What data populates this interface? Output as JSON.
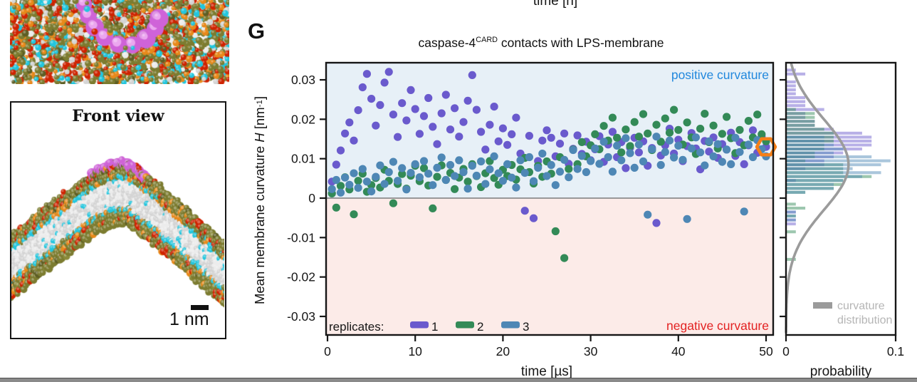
{
  "figure": {
    "panel_label": "G",
    "cropped_top_axis_label": "time [h]",
    "images": {
      "top_view": {
        "palette": {
          "olive": "#7c7c30",
          "olive_dark": "#5e5e24",
          "red": "#cf2300",
          "orange": "#e8891a",
          "cyan": "#22c6de",
          "core_light": "#ececec",
          "core_dark": "#d4d4d4",
          "protein_magenta": "#cf63d8",
          "protein_light": "#eba6ef"
        }
      },
      "front_view": {
        "label": "Front view",
        "scale_bar_text": "1 nm"
      }
    }
  },
  "chart_data": {
    "type": "scatter",
    "title_parts": {
      "main": "caspase-4",
      "sup": "CARD",
      "rest": " contacts with LPS-membrane"
    },
    "xlabel": "time [µs]",
    "ylabel_parts": {
      "prefix": "Mean membrane curvature ",
      "variable": "H",
      "unit_open": " [nm",
      "unit_sup": "-1",
      "unit_close": "]"
    },
    "xlim": [
      0,
      50
    ],
    "ylim": [
      -0.0345,
      0.0345
    ],
    "xticks": [
      {
        "v": 0,
        "label": "0"
      },
      {
        "v": 10,
        "label": "10"
      },
      {
        "v": 20,
        "label": "20"
      },
      {
        "v": 30,
        "label": "30"
      },
      {
        "v": 40,
        "label": "40"
      },
      {
        "v": 50,
        "label": "50"
      }
    ],
    "yticks": [
      {
        "v": 30,
        "label": "0.03"
      },
      {
        "v": 20,
        "label": "0.02"
      },
      {
        "v": 10,
        "label": "0.01"
      },
      {
        "v": 0,
        "label": "0"
      },
      {
        "v": -10,
        "label": "-0.01"
      },
      {
        "v": -20,
        "label": "-0.02"
      },
      {
        "v": -30,
        "label": "-0.03"
      }
    ],
    "background": {
      "positive_region": "#e7f0f7",
      "negative_region": "#fcebe8",
      "zero_line": "#8c8c8c"
    },
    "annotations": {
      "positive": {
        "text": "positive curvature",
        "color": "#2288dd"
      },
      "negative": {
        "text": "negative curvature",
        "color": "#e32222"
      }
    },
    "legend": {
      "label": "replicates:",
      "entries": [
        {
          "name": "1",
          "color": "#6a5acd"
        },
        {
          "name": "2",
          "color": "#338a57"
        },
        {
          "name": "3",
          "color": "#4e87b5"
        }
      ]
    },
    "series_H_units": "1e-3 nm^-1",
    "series": [
      {
        "name": "1",
        "color": "#6a5acd",
        "t0": 0.5,
        "dt": 0.5,
        "H_milli": [
          4.2,
          8.5,
          12.1,
          16.4,
          19.2,
          14.6,
          22.3,
          28.1,
          31.5,
          25.2,
          18.4,
          23.6,
          29.3,
          32.0,
          21.2,
          15.5,
          24.1,
          19.7,
          27.4,
          22.6,
          16.3,
          20.8,
          25.4,
          18.1,
          13.7,
          21.5,
          26.2,
          17.4,
          22.8,
          15.6,
          19.3,
          24.7,
          31.2,
          22.4,
          16.8,
          12.3,
          18.6,
          23.2,
          14.4,
          17.7,
          13.5,
          16.2,
          20.4,
          11.3,
          -3.2,
          15.8,
          -5.1,
          9.4,
          14.6,
          17.2,
          15.3,
          10.6,
          13.8,
          16.4,
          8.7,
          12.5,
          15.9,
          11.2,
          14.3,
          9.6,
          12.4,
          15.7,
          9.2,
          13.6,
          16.8,
          10.4,
          14.2,
          7.6,
          12.8,
          15.3,
          11.6,
          14.4,
          8.2,
          12.7,
          -6.3,
          10.8,
          13.4,
          17.6,
          11.3,
          14.8,
          9.4,
          13.2,
          16.5,
          12.6,
          7.3,
          14.5,
          11.8,
          15.4,
          10.2,
          13.7,
          12.3,
          16.6,
          10.7,
          14.2,
          8.6,
          13.4,
          17.2,
          11.5,
          15.6,
          13.0
        ]
      },
      {
        "name": "2",
        "color": "#338a57",
        "t0": 0.5,
        "dt": 0.5,
        "H_milli": [
          1.2,
          -2.4,
          3.1,
          5.3,
          2.2,
          -4.1,
          4.4,
          6.2,
          1.6,
          3.3,
          5.1,
          2.7,
          7.2,
          4.4,
          -1.3,
          3.6,
          6.1,
          2.4,
          5.7,
          8.2,
          4.3,
          7.6,
          3.2,
          -2.6,
          5.4,
          8.3,
          4.6,
          6.4,
          2.3,
          5.2,
          7.4,
          4.2,
          8.6,
          5.6,
          2.8,
          6.3,
          9.4,
          5.1,
          3.4,
          7.2,
          5.6,
          8.4,
          4.7,
          7.3,
          10.2,
          6.6,
          3.7,
          8.2,
          5.4,
          9.3,
          6.2,
          -8.4,
          10.4,
          -15.2,
          7.4,
          12.3,
          8.6,
          14.2,
          10.6,
          13.4,
          16.2,
          12.4,
          18.3,
          14.6,
          20.4,
          15.3,
          11.6,
          17.4,
          13.2,
          19.3,
          15.6,
          21.3,
          16.4,
          12.2,
          18.6,
          14.3,
          20.2,
          16.6,
          22.4,
          17.3,
          13.6,
          19.2,
          15.4,
          11.2,
          17.6,
          21.4,
          14.2,
          18.4,
          12.6,
          16.3,
          20.6,
          15.2,
          11.4,
          17.3,
          13.4,
          19.6,
          15.4,
          21.2,
          16.2,
          14.4
        ]
      },
      {
        "name": "3",
        "color": "#4e87b5",
        "t0": 0.5,
        "dt": 0.5,
        "H_milli": [
          2.3,
          4.6,
          1.4,
          5.2,
          3.4,
          6.3,
          2.6,
          7.4,
          4.2,
          1.7,
          5.4,
          8.3,
          3.6,
          6.6,
          9.2,
          4.4,
          7.6,
          2.2,
          6.4,
          8.6,
          5.3,
          9.4,
          6.2,
          3.3,
          7.7,
          10.3,
          4.6,
          8.4,
          5.6,
          9.6,
          6.6,
          2.4,
          8.2,
          5.7,
          9.3,
          3.6,
          7.3,
          10.6,
          6.3,
          4.4,
          8.6,
          5.2,
          2.7,
          9.6,
          6.4,
          10.4,
          4.3,
          7.7,
          11.3,
          5.6,
          8.4,
          3.3,
          6.7,
          9.7,
          5.3,
          12.2,
          7.4,
          10.7,
          6.6,
          9.4,
          12.6,
          8.7,
          14.3,
          10.4,
          6.7,
          13.3,
          9.6,
          15.2,
          11.4,
          7.7,
          13.6,
          9.3,
          -4.2,
          12.4,
          15.6,
          8.4,
          11.7,
          14.6,
          10.3,
          13.3,
          9.7,
          -5.3,
          12.6,
          15.4,
          11.6,
          8.3,
          14.4,
          10.6,
          13.7,
          9.2,
          12.3,
          8.6,
          15.3,
          11.7,
          -3.4,
          13.6,
          10.4,
          14.7,
          12.4,
          10.6
        ]
      }
    ],
    "highlight": {
      "series": "1",
      "t": 50,
      "H_milli": 13.0,
      "marker": "hexagon",
      "color": "#f57f17"
    },
    "histogram": {
      "xlabel": "probability",
      "xlim": [
        0,
        0.105
      ],
      "xticks": [
        {
          "v": 0,
          "label": "0"
        },
        {
          "v": 0.1,
          "label": "0.1"
        }
      ],
      "bin_width_milli": 1,
      "bar_opacity": 0.48,
      "legend": {
        "lines": [
          "curvature",
          "distribution"
        ],
        "swatch_color": "#9b9b9b",
        "text_color": "#b5b5b5"
      },
      "fit": {
        "type": "gaussian",
        "mean_milli": 8.5,
        "sigma_milli": 11.5,
        "peak_probability": 0.057,
        "curve_color": "#9b9b9b"
      }
    }
  }
}
